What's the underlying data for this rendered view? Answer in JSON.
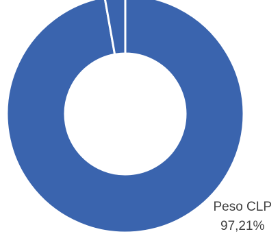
{
  "chart_data": {
    "type": "pie",
    "donut": true,
    "slices": [
      {
        "label": "Peso CLP",
        "value": 97.21,
        "value_label": "97,21%",
        "color": "#3A64AE"
      },
      {
        "label": "",
        "value": 2.79,
        "value_label": "",
        "color": "#3A64AE"
      }
    ],
    "title": "",
    "legend": "none",
    "separator_color": "#FFFFFF",
    "start_angle_deg": 0,
    "direction": "clockwise"
  }
}
